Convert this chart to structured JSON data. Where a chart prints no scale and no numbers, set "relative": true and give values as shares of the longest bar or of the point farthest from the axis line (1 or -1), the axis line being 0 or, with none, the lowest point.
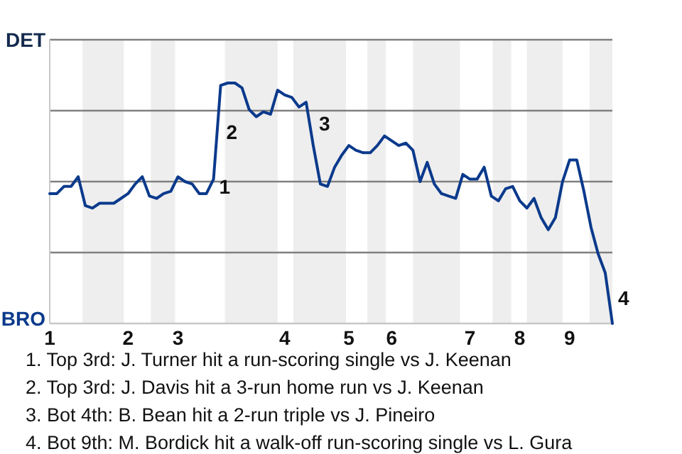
{
  "chart_data": {
    "type": "line",
    "relative": true,
    "categories": [
      "1",
      null,
      null,
      null,
      null,
      null,
      null,
      null,
      null,
      null,
      null,
      "2",
      null,
      null,
      null,
      null,
      null,
      null,
      "3",
      null,
      null,
      null,
      null,
      null,
      null,
      null,
      null,
      null,
      null,
      null,
      null,
      null,
      null,
      "4",
      null,
      null,
      null,
      null,
      null,
      null,
      null,
      null,
      "5",
      null,
      null,
      null,
      null,
      null,
      "6",
      null,
      null,
      null,
      null,
      null,
      null,
      null,
      null,
      null,
      null,
      "7",
      null,
      null,
      null,
      null,
      null,
      null,
      "8",
      null,
      null,
      null,
      null,
      null,
      null,
      "9",
      null,
      null,
      null,
      null,
      null,
      null
    ],
    "series": [
      {
        "color": "#0b3a8c",
        "values": [
          0.54,
          0.54,
          0.57,
          0.57,
          0.61,
          0.49,
          0.48,
          0.5,
          0.5,
          0.5,
          0.52,
          0.54,
          0.58,
          0.61,
          0.53,
          0.52,
          0.54,
          0.55,
          0.61,
          0.59,
          0.58,
          0.54,
          0.54,
          0.6,
          0.99,
          1.0,
          1.0,
          0.98,
          0.89,
          0.86,
          0.88,
          0.87,
          0.97,
          0.95,
          0.94,
          0.9,
          0.92,
          0.74,
          0.58,
          0.57,
          0.65,
          0.7,
          0.74,
          0.72,
          0.71,
          0.71,
          0.74,
          0.78,
          0.76,
          0.74,
          0.75,
          0.72,
          0.59,
          0.67,
          0.58,
          0.54,
          0.53,
          0.52,
          0.62,
          0.6,
          0.6,
          0.65,
          0.53,
          0.51,
          0.56,
          0.57,
          0.51,
          0.48,
          0.52,
          0.44,
          0.39,
          0.44,
          0.59,
          0.68,
          0.68,
          0.55,
          0.4,
          0.29,
          0.21,
          0
        ]
      }
    ],
    "grid": "y",
    "line_style": "solid",
    "annotations": [
      "DET",
      "BRO",
      "1",
      "2",
      "3",
      "4",
      "1. Top 3rd: J. Turner hit a run-scoring single vs J. Keenan",
      "2. Top 3rd: J. Davis hit a 3-run home run vs J. Keenan",
      "3. Bot 4th: B. Bean hit a 2-run triple vs J. Pineiro",
      "4. Bot 9th: M. Bordick hit a walk-off run-scoring single vs L. Gura"
    ]
  }
}
